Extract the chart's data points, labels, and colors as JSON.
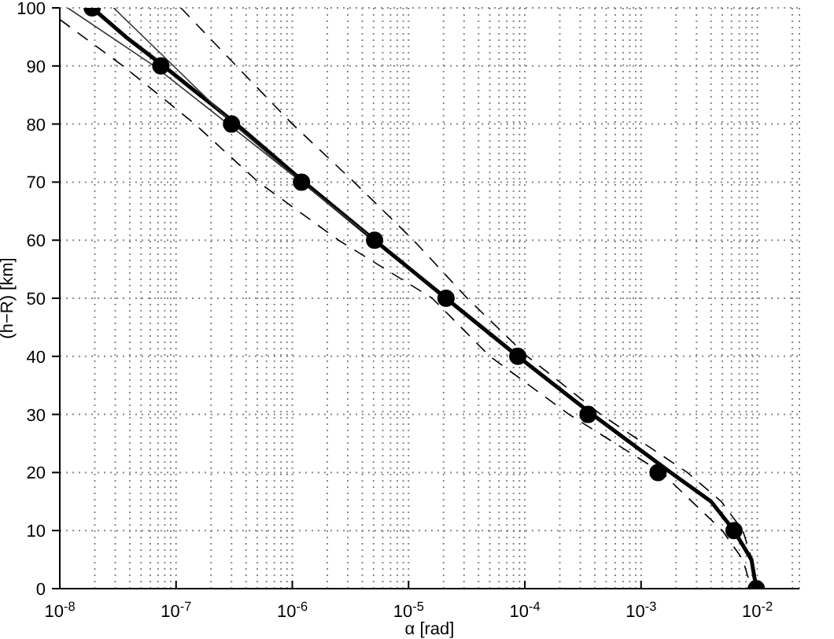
{
  "chart_data": {
    "type": "line",
    "xlabel": "α [rad]",
    "ylabel": "(h−R) [km]",
    "log": "x",
    "grid": true,
    "legend": false,
    "xlim": [
      1e-08,
      0.023
    ],
    "ylim": [
      0,
      100
    ],
    "xticks": [
      {
        "value": 1e-08,
        "label": "10$^{-8}$"
      },
      {
        "value": 2e-08,
        "label": null
      },
      {
        "value": 3e-08,
        "label": null
      },
      {
        "value": 4e-08,
        "label": null
      },
      {
        "value": 5e-08,
        "label": null
      },
      {
        "value": 6e-08,
        "label": null
      },
      {
        "value": 7e-08,
        "label": null
      },
      {
        "value": 8e-08,
        "label": null
      },
      {
        "value": 9e-08,
        "label": null
      },
      {
        "value": 1e-07,
        "label": "10$^{-7}$"
      },
      {
        "value": 2e-07,
        "label": null
      },
      {
        "value": 3e-07,
        "label": null
      },
      {
        "value": 4e-07,
        "label": null
      },
      {
        "value": 5e-07,
        "label": null
      },
      {
        "value": 6e-07,
        "label": null
      },
      {
        "value": 7e-07,
        "label": null
      },
      {
        "value": 8e-07,
        "label": null
      },
      {
        "value": 9e-07,
        "label": null
      },
      {
        "value": 1e-06,
        "label": "10$^{-6}$"
      },
      {
        "value": 2e-06,
        "label": null
      },
      {
        "value": 3e-06,
        "label": null
      },
      {
        "value": 4e-06,
        "label": null
      },
      {
        "value": 5e-06,
        "label": null
      },
      {
        "value": 6e-06,
        "label": null
      },
      {
        "value": 7e-06,
        "label": null
      },
      {
        "value": 8e-06,
        "label": null
      },
      {
        "value": 9e-06,
        "label": null
      },
      {
        "value": 1e-05,
        "label": "10$^{-5}$"
      },
      {
        "value": 2e-05,
        "label": null
      },
      {
        "value": 3e-05,
        "label": null
      },
      {
        "value": 4e-05,
        "label": null
      },
      {
        "value": 5e-05,
        "label": null
      },
      {
        "value": 6e-05,
        "label": null
      },
      {
        "value": 7e-05,
        "label": null
      },
      {
        "value": 8e-05,
        "label": null
      },
      {
        "value": 9e-05,
        "label": null
      },
      {
        "value": 0.0001,
        "label": "10$^{-4}$"
      },
      {
        "value": 0.0002,
        "label": null
      },
      {
        "value": 0.0003,
        "label": null
      },
      {
        "value": 0.0004,
        "label": null
      },
      {
        "value": 0.0005,
        "label": null
      },
      {
        "value": 0.0006,
        "label": null
      },
      {
        "value": 0.0007,
        "label": null
      },
      {
        "value": 0.0008,
        "label": null
      },
      {
        "value": 0.0009,
        "label": null
      },
      {
        "value": 0.001,
        "label": "10$^{-3}$"
      },
      {
        "value": 0.002,
        "label": null
      },
      {
        "value": 0.003,
        "label": null
      },
      {
        "value": 0.004,
        "label": null
      },
      {
        "value": 0.005,
        "label": null
      },
      {
        "value": 0.006,
        "label": null
      },
      {
        "value": 0.007,
        "label": null
      },
      {
        "value": 0.008,
        "label": null
      },
      {
        "value": 0.009,
        "label": null
      },
      {
        "value": 0.01,
        "label": "10$^{-2}$"
      },
      {
        "value": 0.02,
        "label": null
      }
    ],
    "yticks": [
      0,
      10,
      20,
      30,
      40,
      50,
      60,
      70,
      80,
      90,
      100
    ],
    "series": [
      {
        "type": "line",
        "color": "#000000",
        "line_style": "solid",
        "marker": "none",
        "x": [
          1.9e-08,
          3.7e-08,
          7.8e-08,
          3.3e-07,
          1.26e-06,
          5.1e-06,
          2.1e-05,
          8.7e-05,
          0.00038,
          0.0018,
          0.004,
          0.0063,
          0.0089,
          0.0098
        ],
        "values": [
          100,
          95,
          90,
          80,
          70,
          60,
          50,
          40,
          30,
          20,
          15,
          10,
          5,
          0
        ]
      },
      {
        "type": "line",
        "color": "#333333",
        "line_style": "solid",
        "marker": "none",
        "x": [
          2.9e-08,
          9.5e-08,
          3.1e-07,
          1.2e-06,
          5.1e-06
        ],
        "values": [
          100,
          90,
          80,
          70,
          60
        ]
      },
      {
        "type": "line",
        "color": "#333333",
        "line_style": "solid",
        "marker": "none",
        "x": [
          1.17e-08,
          6.5e-08,
          2.8e-07,
          1.2e-06,
          5.1e-06
        ],
        "values": [
          100,
          90,
          80,
          70,
          60
        ]
      },
      {
        "type": "line",
        "color": "#000000",
        "line_style": "dashed",
        "marker": "none",
        "x": [
          1.1e-07,
          3.3e-07,
          1e-06,
          3.4e-06,
          1.1e-05,
          3.2e-05,
          0.000105,
          0.00045,
          0.0025,
          0.0049,
          0.0075,
          0.009,
          0.01
        ],
        "values": [
          100,
          90,
          80,
          70,
          60,
          50,
          40,
          30,
          20,
          15,
          10,
          5,
          0
        ]
      },
      {
        "type": "line",
        "color": "#000000",
        "line_style": "dashed",
        "marker": "none",
        "x": [
          1e-08,
          3.5e-08,
          1.45e-07,
          5.1e-07,
          2.5e-06,
          1.6e-05,
          5e-05,
          0.00024,
          0.0015,
          0.005,
          0.0075,
          0.0089
        ],
        "values": [
          98,
          90,
          80,
          70,
          60,
          50,
          40,
          30,
          20,
          10,
          5,
          0
        ]
      },
      {
        "type": "scatter",
        "color": "#000000",
        "marker": "circle",
        "x": [
          1.9e-08,
          7.4e-08,
          3e-07,
          1.2e-06,
          5.1e-06,
          2.1e-05,
          8.7e-05,
          0.00035,
          0.0014,
          0.0063,
          0.0098
        ],
        "values": [
          100,
          90,
          80,
          70,
          60,
          50,
          40,
          30,
          20,
          10,
          0
        ]
      }
    ]
  }
}
